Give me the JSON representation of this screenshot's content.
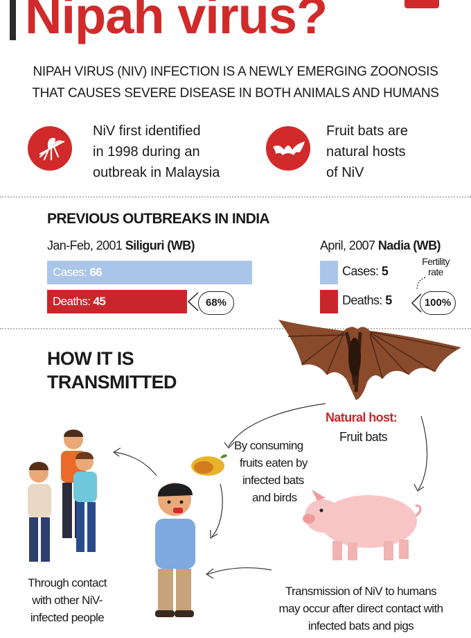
{
  "header": {
    "title": "Nipah virus?",
    "subtitle_line1": "NIPAH VIRUS (NIV) INFECTION IS A NEWLY EMERGING ZOONOSIS",
    "subtitle_line2": "THAT CAUSES SEVERE DISEASE IN BOTH ANIMALS AND HUMANS",
    "accent_color": "#d12a2a"
  },
  "facts": [
    {
      "icon": "mosquito-icon",
      "lines": [
        "NiV first identified",
        "in 1998 during an",
        "outbreak in Malaysia"
      ]
    },
    {
      "icon": "bat-icon",
      "lines": [
        "Fruit bats are",
        "natural hosts",
        "of NiV"
      ]
    }
  ],
  "outbreaks": {
    "heading": "PREVIOUS OUTBREAKS IN INDIA",
    "siliguri": {
      "date": "Jan-Feb, 2001",
      "place": "Siliguri (WB)",
      "cases_label": "Cases:",
      "cases": "66",
      "deaths_label": "Deaths:",
      "deaths": "45",
      "fatality": "68%",
      "cases_fraction": 1.0,
      "deaths_fraction": 0.682
    },
    "nadia": {
      "date": "April, 2007",
      "place": "Nadia (WB)",
      "cases_label": "Cases:",
      "cases": "5",
      "deaths_label": "Deaths:",
      "deaths": "5",
      "fatality": "100%",
      "annotation": "Fertility rate"
    },
    "cases_color": "#a9c6ea",
    "deaths_color": "#c9262c"
  },
  "transmission": {
    "heading_line1": "HOW IT IS",
    "heading_line2": "TRANSMITTED",
    "host_label": "Natural host:",
    "host_value": "Fruit bats",
    "consume_lines": [
      "By consuming",
      "fruits eaten by",
      "infected bats",
      "and birds"
    ],
    "contact_lines": [
      "Through contact",
      "with other NiV-",
      "infected people"
    ],
    "direct_lines": [
      "Transmission of NiV to humans",
      "may occur after direct contact with",
      "infected bats and pigs"
    ]
  }
}
